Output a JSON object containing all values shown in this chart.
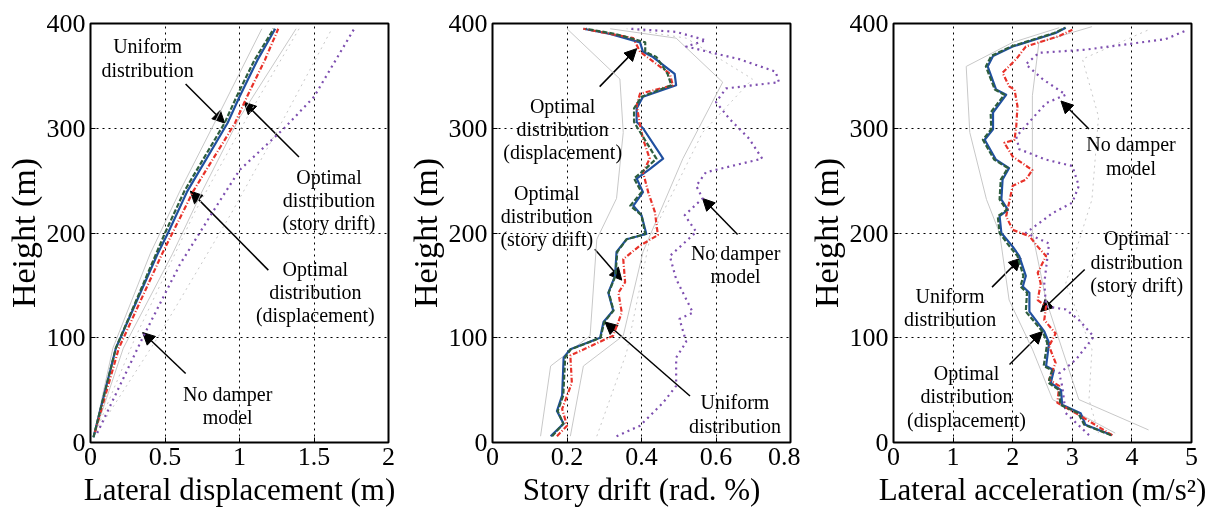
{
  "chart_data": [
    {
      "type": "line",
      "xlabel": "Lateral displacement (m)",
      "ylabel": "Height (m)",
      "xlim": [
        0,
        2
      ],
      "ylim": [
        0,
        400
      ],
      "xticks": [
        0,
        0.5,
        1,
        1.5,
        2
      ],
      "yticks": [
        0,
        100,
        200,
        300,
        400
      ],
      "grid": true,
      "series": [
        {
          "color": "#c8c8c8",
          "line_style": "solid",
          "x": [
            0.02,
            0.15,
            0.4,
            0.6,
            0.85,
            1.15
          ],
          "values": [
            5,
            90,
            180,
            240,
            310,
            395
          ]
        },
        {
          "color": "#c8c8c8",
          "line_style": "solid",
          "x": [
            0.02,
            0.22,
            0.55,
            0.75,
            1.0,
            1.38
          ],
          "values": [
            5,
            90,
            180,
            240,
            310,
            395
          ]
        },
        {
          "color": "#c8c8c8",
          "line_style": "dotted",
          "x": [
            0.02,
            0.3,
            0.7,
            1.05,
            1.4
          ],
          "values": [
            5,
            100,
            220,
            310,
            395
          ]
        },
        {
          "color": "#c8c8c8",
          "line_style": "dotted",
          "x": [
            0.02,
            0.45,
            0.95,
            1.3,
            1.62
          ],
          "values": [
            5,
            100,
            220,
            310,
            395
          ]
        },
        {
          "color": "#7e4fb0",
          "line_style": "dotted",
          "x": [
            0.045,
            0.35,
            0.6,
            0.82,
            1.0,
            1.3,
            1.5,
            1.77
          ],
          "values": [
            9,
            100,
            170,
            220,
            260,
            300,
            330,
            395
          ]
        },
        {
          "color": "#e8322a",
          "line_style": "dashdot",
          "x": [
            0.03,
            0.19,
            0.48,
            0.55,
            0.69,
            0.97,
            1.05,
            1.17,
            1.26
          ],
          "values": [
            10,
            90,
            180,
            200,
            240,
            305,
            330,
            365,
            395
          ]
        },
        {
          "color": "#2e5e3e",
          "line_style": "dashed",
          "x": [
            0.02,
            0.17,
            0.44,
            0.5,
            0.63,
            0.9,
            0.98,
            1.1,
            1.23
          ],
          "values": [
            5,
            90,
            180,
            200,
            240,
            305,
            330,
            365,
            395
          ]
        },
        {
          "color": "#2050a0",
          "line_style": "solid",
          "x": [
            0.02,
            0.17,
            0.45,
            0.52,
            0.65,
            0.92,
            1.0,
            1.12,
            1.18,
            1.24
          ],
          "values": [
            5,
            90,
            180,
            200,
            240,
            305,
            330,
            365,
            380,
            395
          ]
        }
      ],
      "annotations": [
        {
          "text": "Uniform\ndistribution",
          "x": 0.9,
          "y": 305
        },
        {
          "text": "Optimal\ndistribution\n(story drift)",
          "x": 1.03,
          "y": 325
        },
        {
          "text": "Optimal\ndistribution\n(displacement)",
          "x": 0.67,
          "y": 240
        },
        {
          "text": "No damper\nmodel",
          "x": 0.35,
          "y": 105
        }
      ]
    },
    {
      "type": "line",
      "xlabel": "Story drift (rad. %)",
      "ylabel": "Height (m)",
      "xlim": [
        0,
        0.8
      ],
      "ylim": [
        0,
        400
      ],
      "xticks": [
        0,
        0.2,
        0.4,
        0.6,
        0.8
      ],
      "yticks": [
        0,
        100,
        200,
        300,
        400
      ],
      "grid": true,
      "series": [
        {
          "color": "#c8c8c8",
          "line_style": "solid",
          "x": [
            0.129,
            0.156,
            0.262,
            0.28,
            0.333,
            0.351,
            0.342,
            0.2
          ],
          "values": [
            6,
            73,
            102,
            194,
            233,
            296,
            347,
            395
          ]
        },
        {
          "color": "#c8c8c8",
          "line_style": "solid",
          "x": [
            0.209,
            0.244,
            0.351,
            0.404,
            0.511,
            0.618,
            0.493,
            0.316
          ],
          "values": [
            6,
            73,
            102,
            182,
            271,
            344,
            386,
            395
          ]
        },
        {
          "color": "#c8c8c8",
          "line_style": "dotted",
          "x": [
            0.28,
            0.36,
            0.422,
            0.564,
            0.698,
            0.52,
            0.36
          ],
          "values": [
            6,
            86,
            194,
            296,
            347,
            386,
            395
          ]
        },
        {
          "color": "#7e4fb0",
          "line_style": "dotted",
          "x": [
            0.333,
            0.396,
            0.458,
            0.493,
            0.493,
            0.52,
            0.502,
            0.538,
            0.493,
            0.476,
            0.547,
            0.516,
            0.564,
            0.547,
            0.573,
            0.724,
            0.689,
            0.636,
            0.6,
            0.627,
            0.769,
            0.76,
            0.662,
            0.52,
            0.573,
            0.493,
            0.369
          ],
          "values": [
            6,
            16,
            38,
            54,
            81,
            96,
            118,
            124,
            156,
            178,
            201,
            217,
            233,
            245,
            258,
            271,
            290,
            309,
            325,
            338,
            344,
            354,
            366,
            378,
            384,
            392,
            395
          ]
        },
        {
          "color": "#e8322a",
          "line_style": "dashdot",
          "x": [
            0.173,
            0.2,
            0.187,
            0.213,
            0.209,
            0.324,
            0.347,
            0.338,
            0.356,
            0.351,
            0.396,
            0.444,
            0.436,
            0.418,
            0.404,
            0.422,
            0.404,
            0.396,
            0.387,
            0.396,
            0.484,
            0.476,
            0.396,
            0.378,
            0.244
          ],
          "values": [
            6,
            16,
            32,
            57,
            83,
            102,
            124,
            143,
            153,
            175,
            188,
            198,
            220,
            239,
            258,
            271,
            290,
            303,
            322,
            333,
            341,
            352,
            373,
            386,
            395
          ]
        },
        {
          "color": "#2e5e3e",
          "line_style": "dashed",
          "x": [
            0.16,
            0.19,
            0.175,
            0.19,
            0.195,
            0.21,
            0.29,
            0.3,
            0.325,
            0.312,
            0.33,
            0.335,
            0.36,
            0.41,
            0.4,
            0.37,
            0.4,
            0.38,
            0.41,
            0.44,
            0.39,
            0.38,
            0.38,
            0.4,
            0.48,
            0.47,
            0.44,
            0.41,
            0.41,
            0.33,
            0.25
          ],
          "values": [
            6,
            18,
            30,
            45,
            81,
            89,
            100,
            115,
            126,
            143,
            159,
            182,
            194,
            199,
            217,
            226,
            239,
            252,
            261,
            271,
            300,
            306,
            319,
            330,
            341,
            352,
            368,
            373,
            382,
            390,
            395
          ]
        },
        {
          "color": "#2050a0",
          "line_style": "solid",
          "x": [
            0.156,
            0.191,
            0.173,
            0.187,
            0.191,
            0.209,
            0.289,
            0.298,
            0.324,
            0.311,
            0.329,
            0.333,
            0.36,
            0.413,
            0.4,
            0.378,
            0.404,
            0.387,
            0.422,
            0.458,
            0.404,
            0.387,
            0.387,
            0.404,
            0.493,
            0.489,
            0.431,
            0.404,
            0.396,
            0.316,
            0.244
          ],
          "values": [
            6,
            18,
            30,
            45,
            81,
            89,
            100,
            115,
            126,
            143,
            159,
            182,
            194,
            199,
            217,
            226,
            239,
            252,
            261,
            271,
            300,
            306,
            319,
            330,
            341,
            352,
            368,
            373,
            382,
            390,
            395
          ]
        }
      ],
      "annotations": [
        {
          "text": "Optimal\ndistribution\n(displacement)",
          "x": 0.387,
          "y": 376
        },
        {
          "text": "Optimal\ndistribution\n(story drift)",
          "x": 0.347,
          "y": 155
        },
        {
          "text": "No damper\nmodel",
          "x": 0.564,
          "y": 233
        },
        {
          "text": "Uniform\ndistribution",
          "x": 0.302,
          "y": 115
        }
      ]
    },
    {
      "type": "line",
      "xlabel": "Lateral acceleration (m/s²)",
      "ylabel": "Height (m)",
      "xlim": [
        0,
        5
      ],
      "ylim": [
        0,
        400
      ],
      "xticks": [
        0,
        1,
        2,
        3,
        4,
        5
      ],
      "yticks": [
        0,
        100,
        200,
        300,
        400
      ],
      "grid": true,
      "series": [
        {
          "color": "#c8c8c8",
          "line_style": "solid",
          "x": [
            3.72,
            2.67,
            2.33,
            1.94,
            1.78,
            1.56,
            1.28,
            1.22,
            2.0,
            2.78
          ],
          "values": [
            9,
            41,
            89,
            136,
            200,
            232,
            296,
            359,
            382,
            396
          ]
        },
        {
          "color": "#c8c8c8",
          "line_style": "solid",
          "x": [
            4.28,
            3.11,
            2.83,
            2.56,
            2.33,
            2.33,
            2.33,
            2.44,
            3.33
          ],
          "values": [
            12,
            41,
            89,
            136,
            200,
            273,
            331,
            382,
            397
          ]
        },
        {
          "color": "#c8c8c8",
          "line_style": "dotted",
          "x": [
            3.44,
            3.28,
            3.33,
            2.89,
            3.33,
            3.44,
            3.17,
            4.28
          ],
          "values": [
            9,
            41,
            89,
            152,
            232,
            311,
            366,
            394
          ]
        },
        {
          "color": "#7e4fb0",
          "line_style": "dotted",
          "x": [
            3.28,
            2.89,
            2.83,
            2.78,
            3.06,
            3.36,
            3.11,
            2.89,
            2.56,
            2.53,
            2.61,
            2.22,
            2.67,
            3.0,
            3.11,
            3.0,
            2.56,
            2.11,
            2.06,
            2.56,
            2.89,
            2.5,
            2.22,
            2.44,
            3.22,
            4.56,
            4.94
          ],
          "values": [
            7,
            28,
            54,
            66,
            79,
            101,
            117,
            127,
            130,
            152,
            190,
            200,
            219,
            229,
            245,
            264,
            270,
            280,
            292,
            324,
            332,
            347,
            361,
            372,
            375,
            385,
            394
          ]
        },
        {
          "color": "#e8322a",
          "line_style": "dashdot",
          "x": [
            3.67,
            3.06,
            2.75,
            2.78,
            2.61,
            2.72,
            2.61,
            2.72,
            2.53,
            2.56,
            2.42,
            2.47,
            2.42,
            2.56,
            2.42,
            2.28,
            2.0,
            1.89,
            2.0,
            2.22,
            2.33,
            2.0,
            1.86,
            2.03,
            2.06,
            2.08,
            2.03,
            1.94,
            1.83,
            2.06,
            2.22,
            2.78,
            3.0
          ],
          "values": [
            7,
            28,
            38,
            54,
            60,
            76,
            92,
            104,
            117,
            130,
            136,
            152,
            162,
            178,
            187,
            197,
            203,
            216,
            245,
            251,
            260,
            273,
            286,
            289,
            302,
            321,
            337,
            340,
            353,
            366,
            378,
            388,
            394
          ]
        },
        {
          "color": "#2e5e3e",
          "line_style": "dashed",
          "x": [
            3.65,
            3.2,
            3.1,
            2.8,
            2.78,
            2.6,
            2.66,
            2.52,
            2.58,
            2.5,
            2.22,
            2.24,
            2.13,
            2.18,
            2.08,
            1.95,
            1.78,
            1.75,
            1.9,
            1.78,
            1.8,
            1.92,
            1.69,
            1.5,
            1.64,
            1.63,
            1.86,
            1.7,
            1.55,
            1.64,
            1.97,
            2.7,
            2.88
          ],
          "values": [
            7,
            17,
            28,
            36,
            50,
            57,
            69,
            73,
            95,
            106,
            125,
            143,
            149,
            159,
            178,
            187,
            200,
            216,
            222,
            232,
            251,
            262,
            270,
            289,
            299,
            315,
            332,
            337,
            359,
            369,
            378,
            391,
            396
          ]
        },
        {
          "color": "#2050a0",
          "line_style": "solid",
          "x": [
            3.67,
            3.22,
            3.14,
            2.83,
            2.81,
            2.64,
            2.69,
            2.56,
            2.61,
            2.53,
            2.28,
            2.28,
            2.17,
            2.22,
            2.11,
            2.0,
            1.81,
            1.78,
            1.92,
            1.81,
            1.83,
            1.94,
            1.72,
            1.53,
            1.67,
            1.67,
            1.89,
            1.72,
            1.58,
            1.67,
            2.0,
            2.72,
            2.89
          ],
          "values": [
            7,
            17,
            28,
            36,
            50,
            57,
            69,
            73,
            95,
            106,
            125,
            143,
            149,
            159,
            178,
            187,
            200,
            216,
            222,
            232,
            251,
            262,
            270,
            289,
            299,
            315,
            332,
            337,
            359,
            369,
            378,
            391,
            396
          ]
        }
      ],
      "annotations": [
        {
          "text": "No damper\nmodel",
          "x": 2.81,
          "y": 326
        },
        {
          "text": "Optimal\ndistribution\n(story drift)",
          "x": 2.47,
          "y": 125
        },
        {
          "text": "Uniform\ndistribution",
          "x": 2.14,
          "y": 176
        },
        {
          "text": "Optimal\ndistribution\n(displacement)",
          "x": 2.5,
          "y": 106
        }
      ]
    }
  ]
}
